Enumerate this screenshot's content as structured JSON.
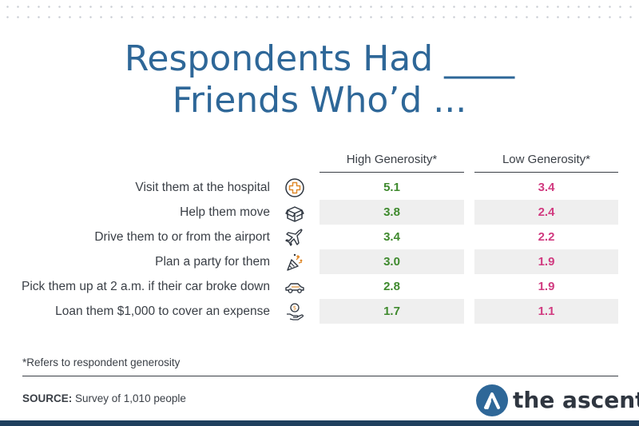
{
  "title_lines": [
    "Respondents Had ____",
    "Friends Who’d ..."
  ],
  "columns": [
    "High Generosity*",
    "Low Generosity*"
  ],
  "rows": [
    {
      "label": "Visit them at the hospital",
      "icon": "medical-cross-icon",
      "high": "5.1",
      "low": "3.4"
    },
    {
      "label": "Help them move",
      "icon": "moving-box-icon",
      "high": "3.8",
      "low": "2.4"
    },
    {
      "label": "Drive them to or from the airport",
      "icon": "airplane-icon",
      "high": "3.4",
      "low": "2.2"
    },
    {
      "label": "Plan a party for them",
      "icon": "party-popper-icon",
      "high": "3.0",
      "low": "1.9"
    },
    {
      "label": "Pick them up at 2 a.m. if their car broke down",
      "icon": "car-icon",
      "high": "2.8",
      "low": "1.9"
    },
    {
      "label": "Loan them $1,000 to cover an expense",
      "icon": "money-hand-icon",
      "high": "1.7",
      "low": "1.1"
    }
  ],
  "footnote": "*Refers to respondent generosity",
  "source": {
    "label": "SOURCE:",
    "text": " Survey of 1,010 people"
  },
  "brand": {
    "name": "the ascent",
    "icon": "ascent-logo-icon"
  },
  "colors": {
    "title": "#2e6798",
    "high": "#3f8a2e",
    "low": "#d13b80",
    "shade": "#efefef",
    "footer_bar": "#1f3f5e"
  },
  "chart_data": {
    "type": "table",
    "categories": [
      "Visit them at the hospital",
      "Help them move",
      "Drive them to or from the airport",
      "Plan a party for them",
      "Pick them up at 2 a.m. if their car broke down",
      "Loan them $1,000 to cover an expense"
    ],
    "series": [
      {
        "name": "High Generosity*",
        "values": [
          5.1,
          3.8,
          3.4,
          3.0,
          2.8,
          1.7
        ]
      },
      {
        "name": "Low Generosity*",
        "values": [
          3.4,
          2.4,
          2.2,
          1.9,
          1.9,
          1.1
        ]
      }
    ],
    "title": "Respondents Had ____ Friends Who’d ..."
  }
}
